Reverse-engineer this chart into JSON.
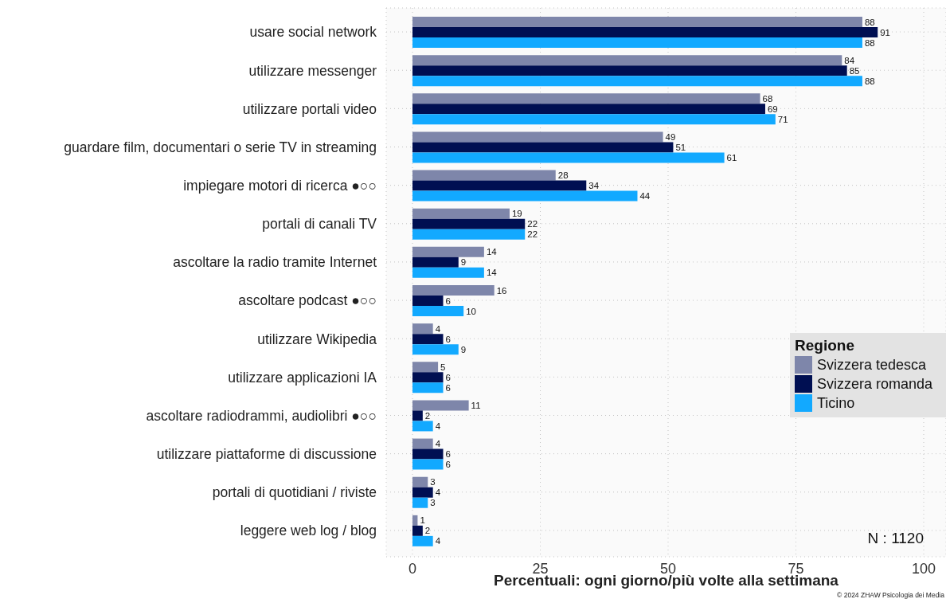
{
  "chart_data": {
    "type": "bar",
    "orientation": "horizontal",
    "categories": [
      "usare social network",
      "utilizzare messenger",
      "utilizzare portali video",
      "guardare film, documentari o serie TV in streaming",
      "impiegare motori di ricerca ●○○",
      "portali di canali TV",
      "ascoltare la radio tramite Internet",
      "ascoltare podcast ●○○",
      "utilizzare Wikipedia",
      "utilizzare applicazioni IA",
      "ascoltare radiodrammi, audiolibri ●○○",
      "utilizzare piattaforme di discussione",
      "portali di quotidiani / riviste",
      "leggere web log / blog"
    ],
    "series": [
      {
        "name": "Svizzera tedesca",
        "color": "#7e86aa",
        "values": [
          88,
          84,
          68,
          49,
          28,
          19,
          14,
          16,
          4,
          5,
          11,
          4,
          3,
          1
        ]
      },
      {
        "name": "Svizzera romanda",
        "color": "#000f52",
        "values": [
          91,
          85,
          69,
          51,
          34,
          22,
          9,
          6,
          6,
          6,
          2,
          6,
          4,
          2
        ]
      },
      {
        "name": "Ticino",
        "color": "#12a9ff",
        "values": [
          88,
          88,
          71,
          61,
          44,
          22,
          14,
          10,
          9,
          6,
          4,
          6,
          3,
          4
        ]
      }
    ],
    "xlabel": "Percentuali: ogni giorno/più volte alla settimana",
    "legend_title": "Regione",
    "legend": "right",
    "xlim": [
      0,
      100
    ],
    "xticks": [
      0,
      25,
      50,
      75,
      100
    ],
    "grid": true,
    "data_labels": true,
    "annotations": [
      "N : 1120",
      "© 2024 ZHAW Psicologia dei Media"
    ]
  }
}
